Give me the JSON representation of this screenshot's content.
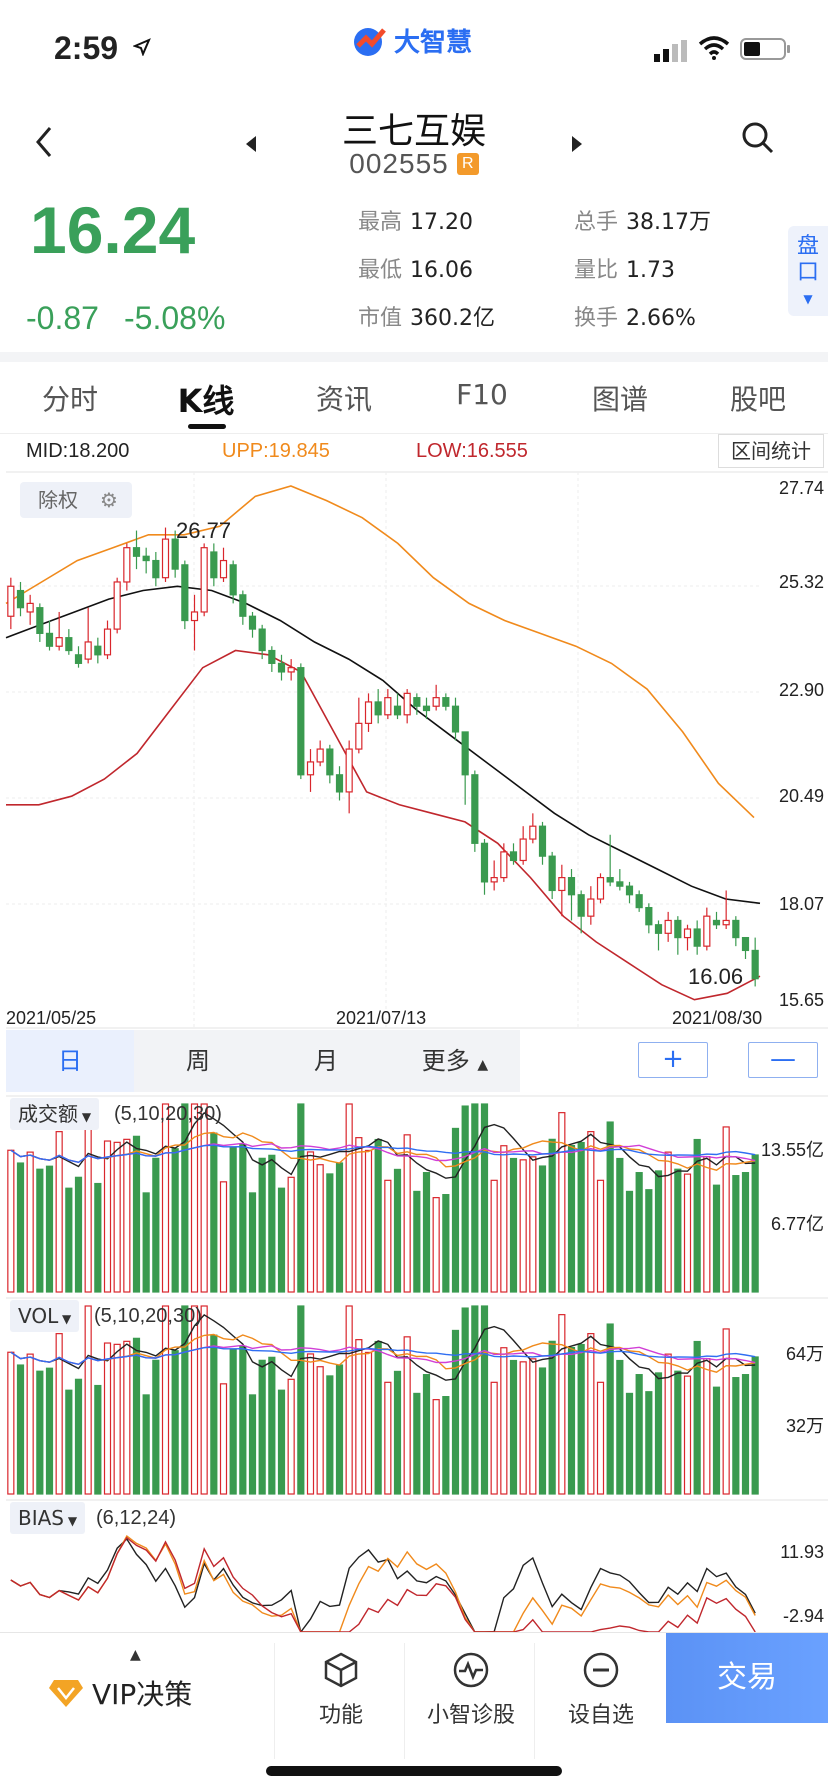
{
  "status": {
    "time": "2:59",
    "brand": "大智慧"
  },
  "header": {
    "stock_name": "三七互娱",
    "stock_code": "002555",
    "badge": "R"
  },
  "quote": {
    "price": "16.24",
    "change": "-0.87",
    "change_pct": "-5.08%",
    "stats": [
      {
        "k": "最高",
        "v": "17.20"
      },
      {
        "k": "总手",
        "v": "38.17万"
      },
      {
        "k": "最低",
        "v": "16.06"
      },
      {
        "k": "量比",
        "v": "1.73"
      },
      {
        "k": "市值",
        "v": "360.2亿"
      },
      {
        "k": "换手",
        "v": "2.66%"
      }
    ],
    "pankou": "盘口"
  },
  "tabs": [
    "分时",
    "K线",
    "资讯",
    "F10",
    "图谱",
    "股吧"
  ],
  "boll": {
    "mid": "MID:18.200",
    "upp": "UPP:19.845",
    "low": "LOW:16.555",
    "range_stats": "区间统计",
    "chuquan": "除权",
    "max_label": "26.77",
    "min_label": "16.06",
    "y_ticks": [
      "27.74",
      "25.32",
      "22.90",
      "20.49",
      "18.07",
      "15.65"
    ],
    "x_ticks": [
      "2021/05/25",
      "2021/07/13",
      "2021/08/30"
    ]
  },
  "periods": [
    "日",
    "周",
    "月",
    "更多"
  ],
  "zoom": {
    "plus": "+",
    "minus": "—"
  },
  "indicators": {
    "amount": {
      "name": "成交额",
      "params": "(5,10,20,30)",
      "y_top": "13.55亿",
      "y_mid": "6.77亿"
    },
    "vol": {
      "name": "VOL",
      "params": "(5,10,20,30)",
      "y_top": "64万",
      "y_mid": "32万"
    },
    "bias": {
      "name": "BIAS",
      "params": "(6,12,24)",
      "y_top": "11.93",
      "y_mid": "-2.94"
    }
  },
  "bottom": {
    "vip": "VIP决策",
    "func": "功能",
    "diag": "小智诊股",
    "watch": "设自选",
    "trade": "交易"
  },
  "colors": {
    "up": "#d9262c",
    "down": "#3a9a4f",
    "mid": "#111111",
    "upp": "#f08a1c",
    "low": "#c0272d",
    "accent": "#2b6ef2"
  },
  "chart_data": {
    "type": "candlestick",
    "price_range": [
      15.65,
      27.74
    ],
    "candles": [
      {
        "o": 24.7,
        "c": 25.4,
        "h": 25.6,
        "l": 24.4
      },
      {
        "o": 25.3,
        "c": 24.9,
        "h": 25.5,
        "l": 24.7
      },
      {
        "o": 24.8,
        "c": 25.0,
        "h": 25.2,
        "l": 24.5
      },
      {
        "o": 24.9,
        "c": 24.3,
        "h": 25.0,
        "l": 24.1
      },
      {
        "o": 24.3,
        "c": 24.0,
        "h": 24.6,
        "l": 23.9
      },
      {
        "o": 24.0,
        "c": 24.2,
        "h": 24.8,
        "l": 23.9
      },
      {
        "o": 24.2,
        "c": 23.9,
        "h": 24.4,
        "l": 23.8
      },
      {
        "o": 23.8,
        "c": 23.6,
        "h": 24.0,
        "l": 23.5
      },
      {
        "o": 23.7,
        "c": 24.1,
        "h": 24.9,
        "l": 23.6
      },
      {
        "o": 24.0,
        "c": 23.8,
        "h": 24.2,
        "l": 23.6
      },
      {
        "o": 23.8,
        "c": 24.4,
        "h": 24.6,
        "l": 23.7
      },
      {
        "o": 24.4,
        "c": 25.5,
        "h": 25.6,
        "l": 24.3
      },
      {
        "o": 25.5,
        "c": 26.3,
        "h": 26.4,
        "l": 25.3
      },
      {
        "o": 26.3,
        "c": 26.1,
        "h": 26.7,
        "l": 25.8
      },
      {
        "o": 26.1,
        "c": 26.0,
        "h": 26.3,
        "l": 25.7
      },
      {
        "o": 26.0,
        "c": 25.6,
        "h": 26.2,
        "l": 25.4
      },
      {
        "o": 25.6,
        "c": 26.5,
        "h": 26.77,
        "l": 25.5
      },
      {
        "o": 26.5,
        "c": 25.8,
        "h": 26.7,
        "l": 25.6
      },
      {
        "o": 25.9,
        "c": 24.6,
        "h": 26.0,
        "l": 24.4
      },
      {
        "o": 24.6,
        "c": 24.8,
        "h": 25.2,
        "l": 23.9
      },
      {
        "o": 24.8,
        "c": 26.3,
        "h": 26.4,
        "l": 24.7
      },
      {
        "o": 26.2,
        "c": 25.6,
        "h": 26.4,
        "l": 25.4
      },
      {
        "o": 25.6,
        "c": 26.0,
        "h": 26.3,
        "l": 25.5
      },
      {
        "o": 25.9,
        "c": 25.2,
        "h": 26.0,
        "l": 25.0
      },
      {
        "o": 25.2,
        "c": 24.7,
        "h": 25.3,
        "l": 24.5
      },
      {
        "o": 24.7,
        "c": 24.4,
        "h": 24.8,
        "l": 24.2
      },
      {
        "o": 24.4,
        "c": 23.9,
        "h": 24.5,
        "l": 23.7
      },
      {
        "o": 23.9,
        "c": 23.6,
        "h": 24.0,
        "l": 23.4
      },
      {
        "o": 23.6,
        "c": 23.4,
        "h": 23.8,
        "l": 23.2
      },
      {
        "o": 23.4,
        "c": 23.5,
        "h": 23.7,
        "l": 23.2
      },
      {
        "o": 23.5,
        "c": 21.0,
        "h": 23.6,
        "l": 20.9
      },
      {
        "o": 21.0,
        "c": 21.3,
        "h": 21.6,
        "l": 20.6
      },
      {
        "o": 21.3,
        "c": 21.6,
        "h": 21.8,
        "l": 21.2
      },
      {
        "o": 21.6,
        "c": 21.0,
        "h": 21.7,
        "l": 20.8
      },
      {
        "o": 21.0,
        "c": 20.6,
        "h": 21.2,
        "l": 20.4
      },
      {
        "o": 20.6,
        "c": 21.6,
        "h": 21.8,
        "l": 20.1
      },
      {
        "o": 21.6,
        "c": 22.2,
        "h": 22.8,
        "l": 21.5
      },
      {
        "o": 22.2,
        "c": 22.7,
        "h": 22.9,
        "l": 22.0
      },
      {
        "o": 22.7,
        "c": 22.4,
        "h": 23.0,
        "l": 22.2
      },
      {
        "o": 22.4,
        "c": 22.8,
        "h": 23.0,
        "l": 22.3
      },
      {
        "o": 22.6,
        "c": 22.4,
        "h": 22.9,
        "l": 22.3
      },
      {
        "o": 22.4,
        "c": 22.9,
        "h": 23.0,
        "l": 22.2
      },
      {
        "o": 22.8,
        "c": 22.6,
        "h": 22.9,
        "l": 22.4
      },
      {
        "o": 22.6,
        "c": 22.5,
        "h": 22.8,
        "l": 22.3
      },
      {
        "o": 22.6,
        "c": 22.8,
        "h": 23.1,
        "l": 22.5
      },
      {
        "o": 22.8,
        "c": 22.6,
        "h": 22.9,
        "l": 22.5
      },
      {
        "o": 22.6,
        "c": 22.0,
        "h": 22.8,
        "l": 21.8
      },
      {
        "o": 22.0,
        "c": 21.0,
        "h": 22.0,
        "l": 20.3
      },
      {
        "o": 21.0,
        "c": 19.4,
        "h": 21.1,
        "l": 19.2
      },
      {
        "o": 19.4,
        "c": 18.5,
        "h": 19.5,
        "l": 18.2
      },
      {
        "o": 18.5,
        "c": 18.6,
        "h": 19.0,
        "l": 18.3
      },
      {
        "o": 18.6,
        "c": 19.2,
        "h": 19.4,
        "l": 18.5
      },
      {
        "o": 19.2,
        "c": 19.0,
        "h": 19.4,
        "l": 18.9
      },
      {
        "o": 19.0,
        "c": 19.5,
        "h": 19.8,
        "l": 18.9
      },
      {
        "o": 19.5,
        "c": 19.8,
        "h": 20.1,
        "l": 19.4
      },
      {
        "o": 19.8,
        "c": 19.1,
        "h": 19.9,
        "l": 18.9
      },
      {
        "o": 19.1,
        "c": 18.3,
        "h": 19.2,
        "l": 18.1
      },
      {
        "o": 18.3,
        "c": 18.6,
        "h": 18.9,
        "l": 17.7
      },
      {
        "o": 18.6,
        "c": 18.2,
        "h": 18.8,
        "l": 17.6
      },
      {
        "o": 18.2,
        "c": 17.7,
        "h": 18.3,
        "l": 17.3
      },
      {
        "o": 17.7,
        "c": 18.1,
        "h": 18.4,
        "l": 17.5
      },
      {
        "o": 18.1,
        "c": 18.6,
        "h": 18.7,
        "l": 18.0
      },
      {
        "o": 18.6,
        "c": 18.5,
        "h": 19.6,
        "l": 18.4
      },
      {
        "o": 18.5,
        "c": 18.4,
        "h": 18.8,
        "l": 18.3
      },
      {
        "o": 18.4,
        "c": 18.2,
        "h": 18.5,
        "l": 18.0
      },
      {
        "o": 18.2,
        "c": 17.9,
        "h": 18.3,
        "l": 17.8
      },
      {
        "o": 17.9,
        "c": 17.5,
        "h": 18.0,
        "l": 17.3
      },
      {
        "o": 17.5,
        "c": 17.3,
        "h": 17.6,
        "l": 16.9
      },
      {
        "o": 17.3,
        "c": 17.6,
        "h": 17.8,
        "l": 17.1
      },
      {
        "o": 17.6,
        "c": 17.2,
        "h": 17.7,
        "l": 16.8
      },
      {
        "o": 17.2,
        "c": 17.4,
        "h": 17.5,
        "l": 16.9
      },
      {
        "o": 17.4,
        "c": 17.0,
        "h": 17.6,
        "l": 16.8
      },
      {
        "o": 17.0,
        "c": 17.7,
        "h": 17.9,
        "l": 16.9
      },
      {
        "o": 17.6,
        "c": 17.5,
        "h": 17.8,
        "l": 17.4
      },
      {
        "o": 17.5,
        "c": 17.6,
        "h": 18.3,
        "l": 17.4
      },
      {
        "o": 17.6,
        "c": 17.2,
        "h": 17.7,
        "l": 17.0
      },
      {
        "o": 17.2,
        "c": 16.9,
        "h": 17.2,
        "l": 16.7
      },
      {
        "o": 16.9,
        "c": 16.24,
        "h": 17.2,
        "l": 16.06
      }
    ],
    "mid": [
      24.2,
      24.5,
      24.8,
      25.1,
      25.3,
      25.4,
      25.3,
      25.0,
      24.6,
      24.1,
      23.7,
      23.2,
      22.5,
      21.9,
      21.3,
      20.7,
      20.1,
      19.6,
      19.2,
      18.8,
      18.4,
      18.1,
      18.0
    ],
    "upp": [
      25.0,
      25.5,
      26.0,
      26.3,
      26.6,
      26.6,
      26.8,
      27.5,
      27.74,
      27.4,
      27.0,
      26.4,
      25.6,
      25.0,
      24.6,
      24.3,
      24.0,
      23.6,
      23.0,
      22.0,
      20.8,
      20.0
    ],
    "low": [
      20.3,
      20.3,
      20.5,
      20.9,
      21.5,
      22.5,
      23.5,
      23.9,
      23.8,
      23.4,
      22.0,
      20.6,
      20.3,
      20.1,
      19.9,
      19.4,
      18.6,
      17.7,
      17.1,
      16.6,
      16.1,
      15.75,
      15.9,
      16.3
    ]
  }
}
